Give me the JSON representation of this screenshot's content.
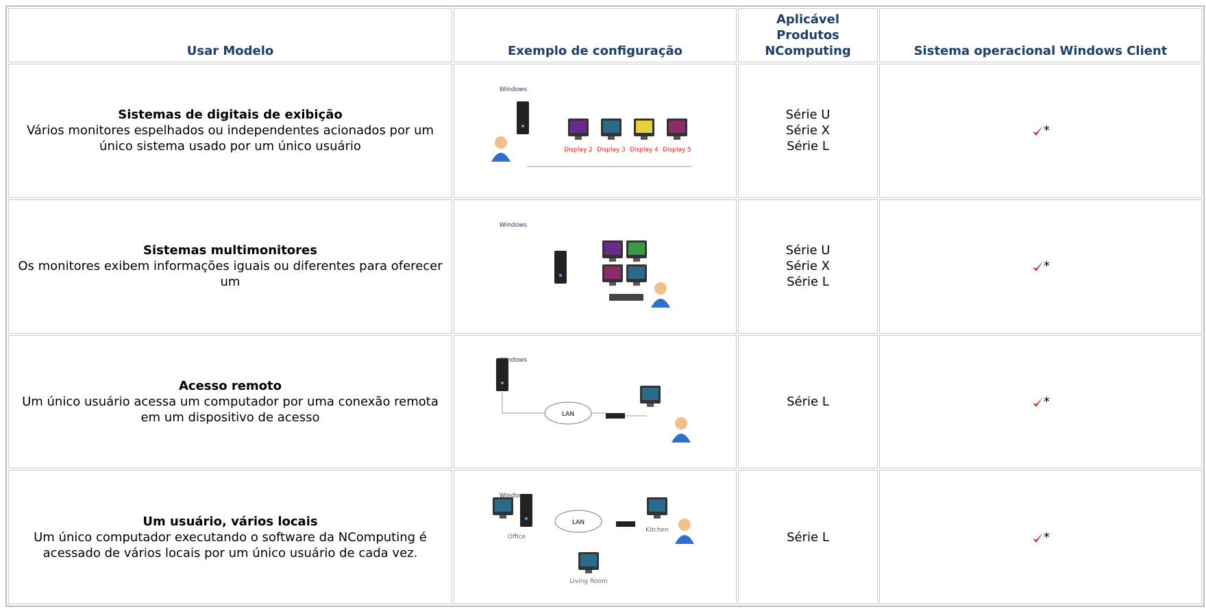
{
  "header": {
    "columns": [
      "Usar Modelo",
      "Exemplo de configuração",
      "Aplicável Produtos NComputing",
      "Sistema operacional Windows Client"
    ]
  },
  "rows": [
    {
      "title": "Sistemas de digitais de exibição",
      "description": "Vários monitores espelhados ou independentes acionados por um único sistema usado por um único usuário",
      "image_labels": [
        "Windows",
        "Display 2",
        "Display 3",
        "Display 4",
        "Display 5"
      ],
      "products": [
        "Série U",
        "Série X",
        "Série L"
      ],
      "support": "*"
    },
    {
      "title": "Sistemas multimonitores",
      "description": "Os monitores exibem informações iguais ou diferentes para oferecer um",
      "image_labels": [
        "Windows"
      ],
      "products": [
        "Série U",
        "Série X",
        "Série L"
      ],
      "support": "*"
    },
    {
      "title": "Acesso remoto",
      "description": "Um único usuário acessa um computador por uma conexão remota em um dispositivo de acesso",
      "image_labels": [
        "Windows",
        "LAN"
      ],
      "products": [
        "Série L"
      ],
      "support": "*"
    },
    {
      "title": "Um usuário, vários locais",
      "description": "Um único computador executando o software da NComputing é acessado de vários locais por um único usuário de cada vez.",
      "image_labels": [
        "Windows",
        "LAN",
        "Office",
        "Kitchen",
        "Living Room"
      ],
      "products": [
        "Série L"
      ],
      "support": "*"
    }
  ]
}
